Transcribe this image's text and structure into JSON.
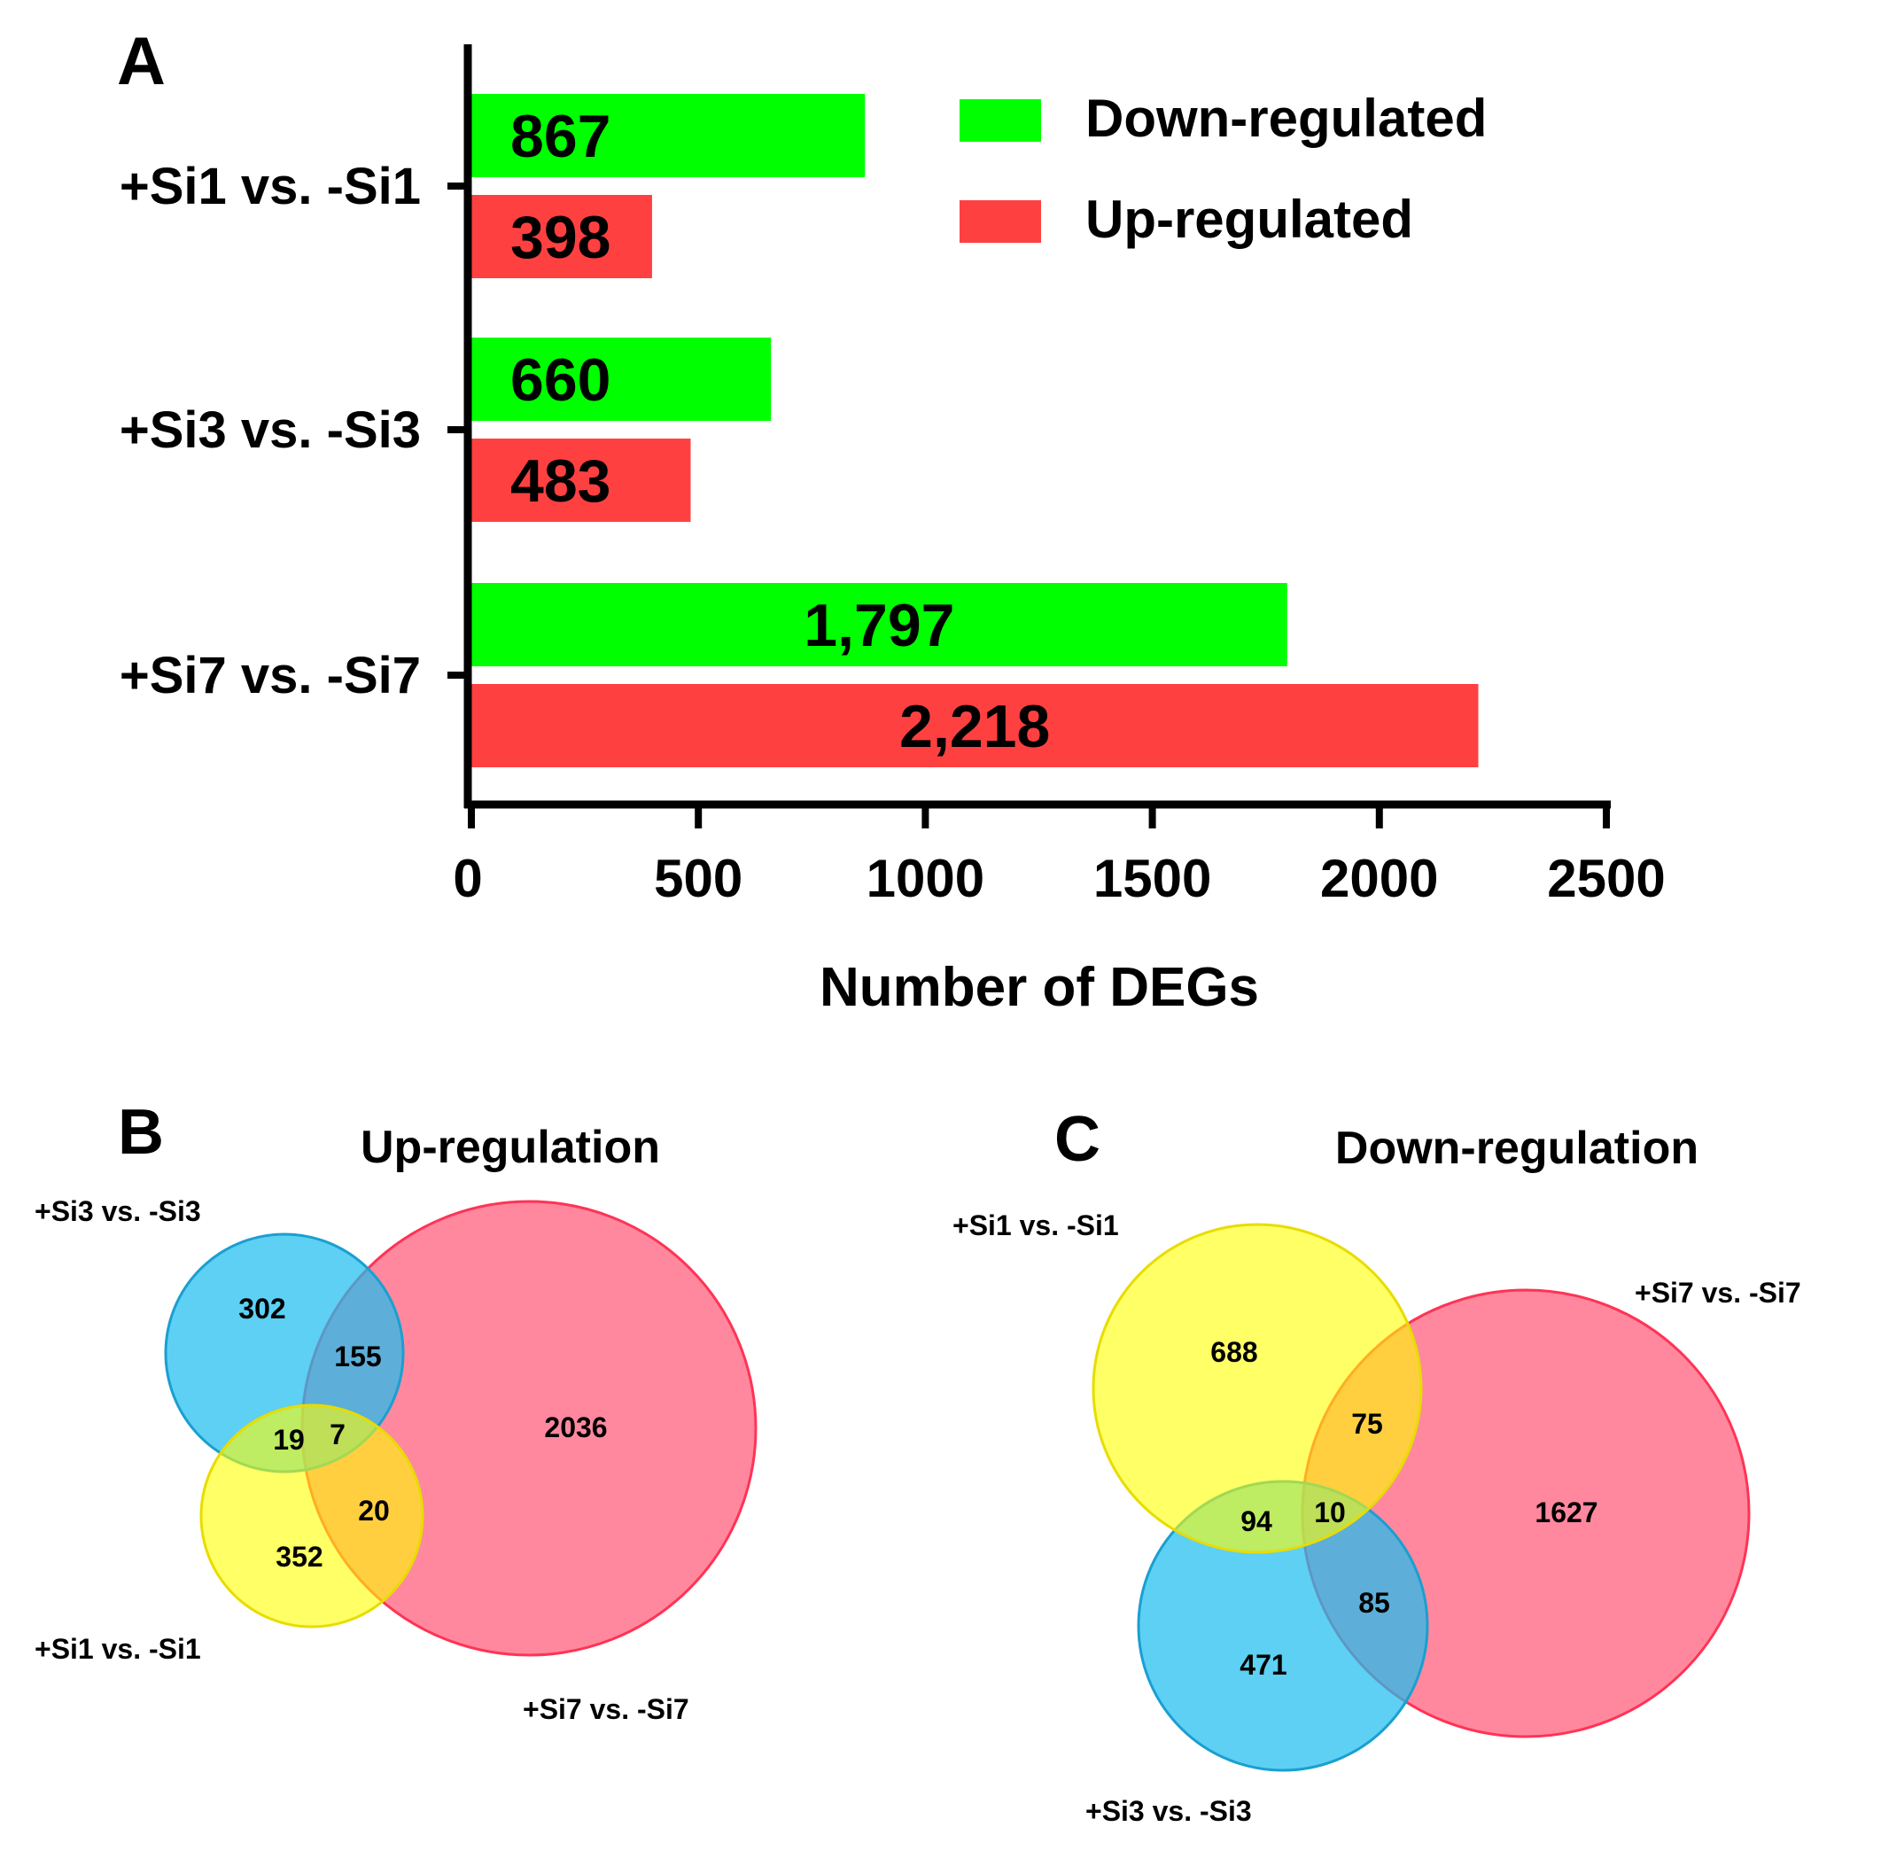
{
  "panels": {
    "a_label": "A",
    "b_label": "B",
    "c_label": "C"
  },
  "chart_data": [
    {
      "type": "bar",
      "orientation": "horizontal",
      "categories": [
        "+Si1 vs. -Si1",
        "+Si3 vs. -Si3",
        "+Si7 vs. -Si7"
      ],
      "series": [
        {
          "name": "Down-regulated",
          "color": "#00ff00",
          "values": [
            867,
            660,
            1797
          ],
          "labels": [
            "867",
            "660",
            "1,797"
          ]
        },
        {
          "name": "Up-regulated",
          "color": "#ff4040",
          "values": [
            398,
            483,
            2218
          ],
          "labels": [
            "398",
            "483",
            "2,218"
          ]
        }
      ],
      "xlabel": "Number of DEGs",
      "ylabel": "",
      "xlim": [
        0,
        2500
      ],
      "xticks": [
        "0",
        "500",
        "1000",
        "1500",
        "2000",
        "2500"
      ],
      "grid": false,
      "legend": "top-right"
    },
    {
      "type": "venn",
      "title": "Up-regulation",
      "sets": [
        {
          "name": "+Si3 vs. -Si3",
          "color": "#1ebef0"
        },
        {
          "name": "+Si1 vs. -Si1",
          "color": "#ffff00"
        },
        {
          "name": "+Si7 vs. -Si7",
          "color": "#ff5a78"
        }
      ],
      "regions": [
        {
          "sets": [
            "+Si3 vs. -Si3"
          ],
          "value": "302"
        },
        {
          "sets": [
            "+Si3 vs. -Si3",
            "+Si7 vs. -Si7"
          ],
          "value": "155"
        },
        {
          "sets": [
            "+Si7 vs. -Si7"
          ],
          "value": "2036"
        },
        {
          "sets": [
            "+Si3 vs. -Si3",
            "+Si1 vs. -Si1"
          ],
          "value": "19"
        },
        {
          "sets": [
            "+Si3 vs. -Si3",
            "+Si1 vs. -Si1",
            "+Si7 vs. -Si7"
          ],
          "value": "7"
        },
        {
          "sets": [
            "+Si1 vs. -Si1",
            "+Si7 vs. -Si7"
          ],
          "value": "20"
        },
        {
          "sets": [
            "+Si1 vs. -Si1"
          ],
          "value": "352"
        }
      ]
    },
    {
      "type": "venn",
      "title": "Down-regulation",
      "sets": [
        {
          "name": "+Si1 vs. -Si1",
          "color": "#ffff00"
        },
        {
          "name": "+Si7 vs. -Si7",
          "color": "#ff5a78"
        },
        {
          "name": "+Si3 vs. -Si3",
          "color": "#1ebef0"
        }
      ],
      "regions": [
        {
          "sets": [
            "+Si1 vs. -Si1"
          ],
          "value": "688"
        },
        {
          "sets": [
            "+Si1 vs. -Si1",
            "+Si7 vs. -Si7"
          ],
          "value": "75"
        },
        {
          "sets": [
            "+Si7 vs. -Si7"
          ],
          "value": "1627"
        },
        {
          "sets": [
            "+Si1 vs. -Si1",
            "+Si3 vs. -Si3"
          ],
          "value": "94"
        },
        {
          "sets": [
            "+Si1 vs. -Si1",
            "+Si3 vs. -Si3",
            "+Si7 vs. -Si7"
          ],
          "value": "10"
        },
        {
          "sets": [
            "+Si3 vs. -Si3",
            "+Si7 vs. -Si7"
          ],
          "value": "85"
        },
        {
          "sets": [
            "+Si3 vs. -Si3"
          ],
          "value": "471"
        }
      ]
    }
  ]
}
